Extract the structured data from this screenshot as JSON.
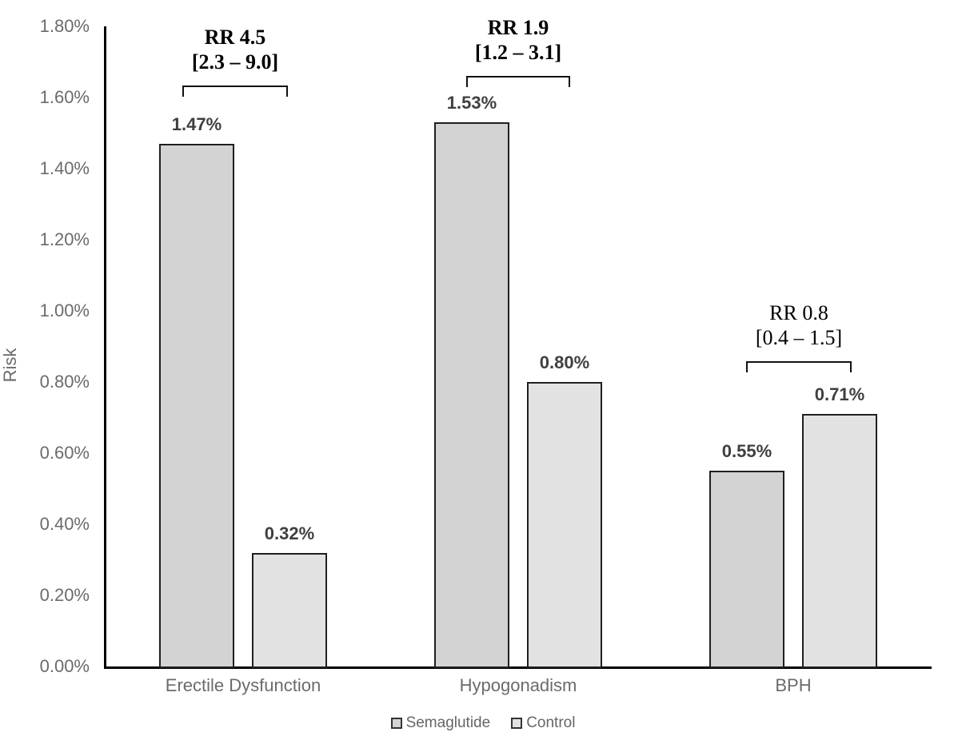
{
  "chart_data": {
    "type": "bar",
    "title": "",
    "xlabel": "",
    "ylabel": "Risk",
    "ylim": [
      0,
      1.8
    ],
    "y_tick_step": 0.2,
    "y_tick_labels": [
      "0.00%",
      "0.20%",
      "0.40%",
      "0.60%",
      "0.80%",
      "1.00%",
      "1.20%",
      "1.40%",
      "1.60%",
      "1.80%"
    ],
    "grid": false,
    "legend_position": "bottom",
    "categories": [
      "Erectile Dysfunction",
      "Hypogonadism",
      "BPH"
    ],
    "series": [
      {
        "name": "Semaglutide",
        "values": [
          1.47,
          1.53,
          0.55
        ],
        "labels": [
          "1.47%",
          "1.53%",
          "0.55%"
        ],
        "fill": "#d3d3d3"
      },
      {
        "name": "Control",
        "values": [
          0.32,
          0.8,
          0.71
        ],
        "labels": [
          "0.32%",
          "0.80%",
          "0.71%"
        ],
        "fill": "#e2e2e2"
      }
    ],
    "annotations": [
      {
        "line1": "RR 4.5",
        "line2": "[2.3 – 9.0]",
        "bold": true
      },
      {
        "line1": "RR 1.9",
        "line2": "[1.2 – 3.1]",
        "bold": true
      },
      {
        "line1": "RR 0.8",
        "line2": "[0.4 – 1.5]",
        "bold": false
      }
    ]
  },
  "colors": {
    "bar_border": "#1f1f1f",
    "axis_line": "#000000",
    "bracket_line": "#111111",
    "tick_text": "#6b6b6b",
    "data_label_text": "#3f3f3f",
    "annotation_text": "#000000",
    "semaglutide_fill": "#d3d3d3",
    "control_fill": "#e2e2e2"
  }
}
